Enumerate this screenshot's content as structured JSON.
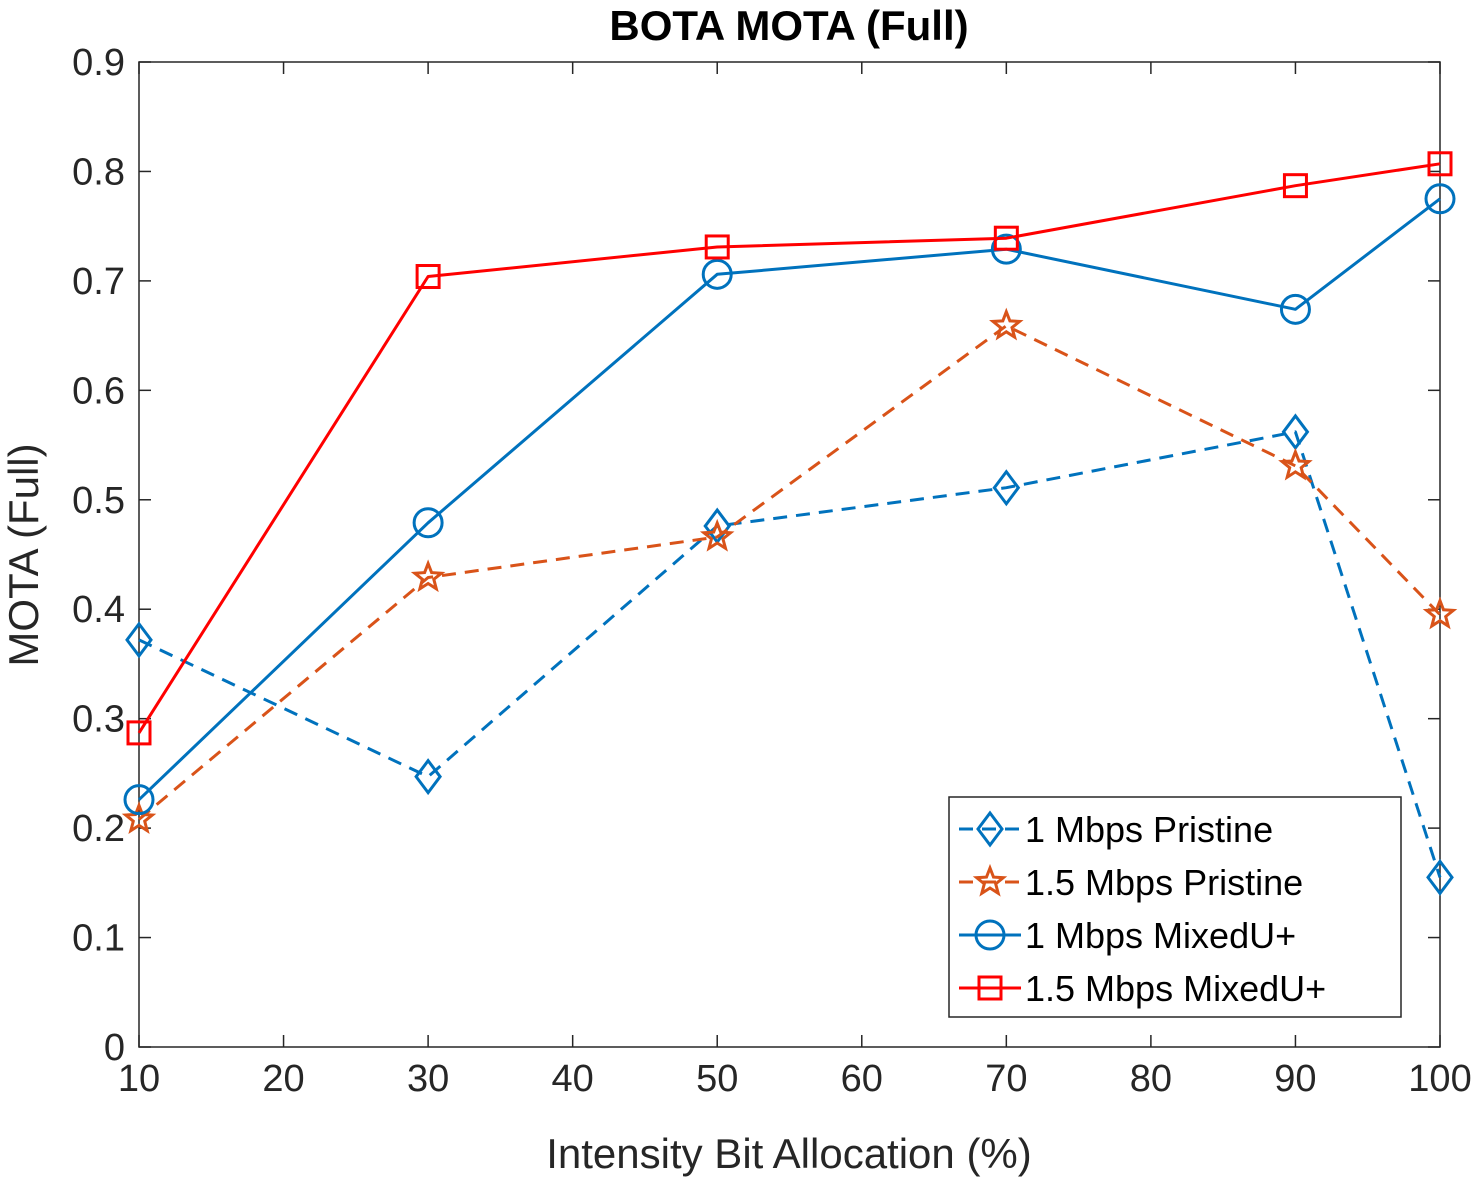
{
  "chart_data": {
    "type": "line",
    "title": "BOTA MOTA (Full)",
    "xlabel": "Intensity Bit Allocation (%)",
    "ylabel": "MOTA (Full)",
    "xlim": [
      10,
      100
    ],
    "ylim": [
      0,
      0.9
    ],
    "xticks": [
      10,
      20,
      30,
      40,
      50,
      60,
      70,
      80,
      90,
      100
    ],
    "xtick_labels": [
      "10",
      "20",
      "30",
      "40",
      "50",
      "60",
      "70",
      "80",
      "90",
      "100"
    ],
    "yticks": [
      0,
      0.1,
      0.2,
      0.3,
      0.4,
      0.5,
      0.6,
      0.7,
      0.8,
      0.9
    ],
    "ytick_labels": [
      "0",
      "0.1",
      "0.2",
      "0.3",
      "0.4",
      "0.5",
      "0.6",
      "0.7",
      "0.8",
      "0.9"
    ],
    "grid": false,
    "legend_position": "bottom-right",
    "x": [
      10,
      30,
      50,
      70,
      90,
      100
    ],
    "series": [
      {
        "name": "1 Mbps Pristine",
        "values": [
          0.372,
          0.247,
          0.476,
          0.511,
          0.562,
          0.155
        ],
        "color": "#0072BD",
        "dash": "dashed",
        "marker": "diamond"
      },
      {
        "name": "1.5 Mbps Pristine",
        "values": [
          0.208,
          0.429,
          0.466,
          0.659,
          0.531,
          0.395
        ],
        "color": "#D95319",
        "dash": "dashed",
        "marker": "star"
      },
      {
        "name": "1 Mbps MixedU+",
        "values": [
          0.226,
          0.479,
          0.706,
          0.729,
          0.674,
          0.775
        ],
        "color": "#0072BD",
        "dash": "solid",
        "marker": "circle"
      },
      {
        "name": "1.5 Mbps MixedU+",
        "values": [
          0.287,
          0.704,
          0.731,
          0.739,
          0.787,
          0.807
        ],
        "color": "#FF0000",
        "dash": "solid",
        "marker": "square"
      }
    ]
  }
}
